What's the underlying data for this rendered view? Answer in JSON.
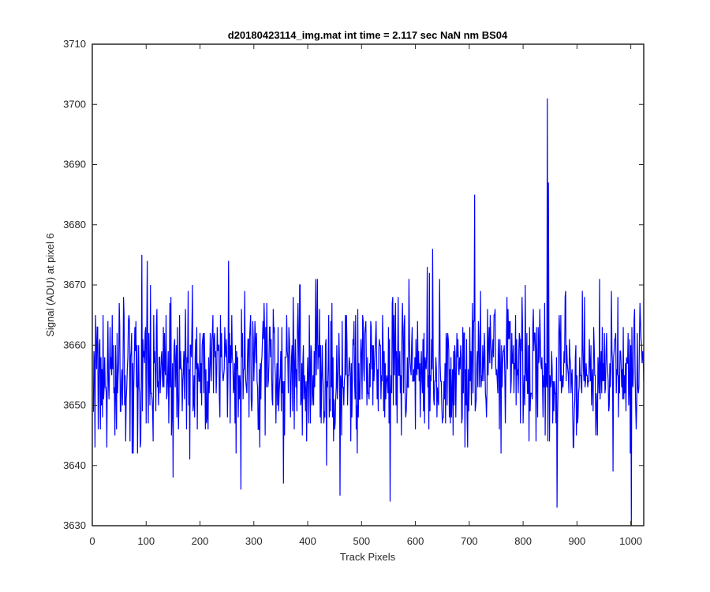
{
  "chart_data": {
    "type": "line",
    "title": "d20180423114_img.mat int time = 2.117 sec  NaN nm BS04",
    "xlabel": "Track Pixels",
    "ylabel": "Signal (ADU) at pixel 6",
    "xlim": [
      0,
      1024
    ],
    "ylim": [
      3630,
      3710
    ],
    "xticks": [
      0,
      100,
      200,
      300,
      400,
      500,
      600,
      700,
      800,
      900,
      1000
    ],
    "yticks": [
      3630,
      3640,
      3650,
      3660,
      3670,
      3680,
      3690,
      3700,
      3710
    ],
    "grid": false,
    "legend": "none",
    "series_color": "#0000ff",
    "series": [
      {
        "x_start": 1,
        "x_step": 1,
        "baseline": 3656,
        "noise_amplitude": 6,
        "features": [
          {
            "x": 710,
            "y": 3685
          },
          {
            "x": 845,
            "y": 3701
          },
          {
            "x": 847,
            "y": 3687
          },
          {
            "x": 863,
            "y": 3633
          },
          {
            "x": 1001,
            "y": 3630
          },
          {
            "x": 276,
            "y": 3636
          },
          {
            "x": 460,
            "y": 3635
          },
          {
            "x": 553,
            "y": 3634
          },
          {
            "x": 150,
            "y": 3638
          },
          {
            "x": 355,
            "y": 3637
          }
        ]
      }
    ]
  }
}
